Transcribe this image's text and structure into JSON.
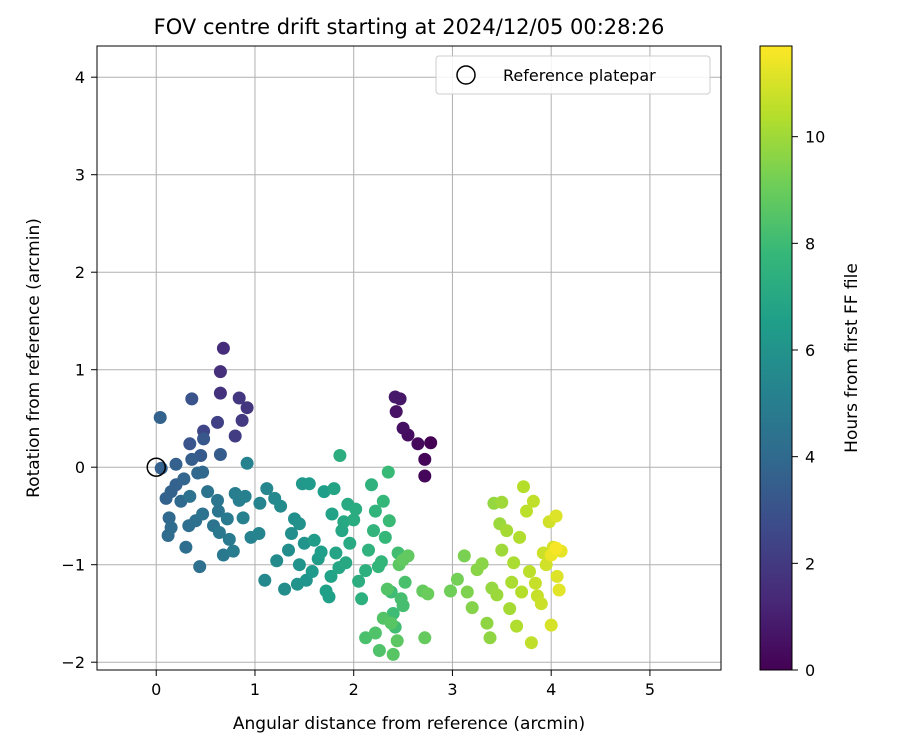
{
  "chart_data": {
    "type": "scatter",
    "title": "FOV centre drift starting at 2024/12/05 00:28:26",
    "xlabel": "Angular distance from reference (arcmin)",
    "ylabel": "Rotation from reference (arcmin)",
    "xlim": [
      -0.6,
      5.72
    ],
    "ylim": [
      -2.08,
      4.32
    ],
    "xticks": [
      "0",
      "1",
      "2",
      "3",
      "4",
      "5"
    ],
    "yticks": [
      "−2",
      "−1",
      "0",
      "1",
      "2",
      "3",
      "4"
    ],
    "grid": true,
    "legend": {
      "position": "top-right",
      "entries": [
        "Reference platepar"
      ]
    },
    "reference_point": {
      "x": 0,
      "y": 0,
      "marker": "open-circle"
    },
    "colorbar": {
      "label": "Hours from first FF file",
      "range": [
        0,
        11.7
      ],
      "ticks": [
        "0",
        "2",
        "4",
        "6",
        "8",
        "10"
      ],
      "colormap": "viridis"
    },
    "colormap_stops": [
      "#440154",
      "#482878",
      "#3e4989",
      "#31688e",
      "#26828e",
      "#1f9e89",
      "#35b779",
      "#6ece58",
      "#b5de2b",
      "#fde725"
    ],
    "point_fields": [
      "x",
      "y",
      "hours"
    ],
    "points": [
      [
        2.78,
        0.25,
        0.0
      ],
      [
        2.72,
        0.08,
        0.1
      ],
      [
        2.72,
        -0.09,
        0.2
      ],
      [
        2.65,
        0.24,
        0.3
      ],
      [
        2.55,
        0.33,
        0.4
      ],
      [
        2.5,
        0.4,
        0.5
      ],
      [
        2.43,
        0.57,
        0.6
      ],
      [
        2.47,
        0.7,
        0.7
      ],
      [
        2.42,
        0.72,
        0.8
      ],
      [
        0.68,
        1.22,
        1.5
      ],
      [
        0.65,
        0.98,
        1.6
      ],
      [
        0.65,
        0.76,
        1.7
      ],
      [
        0.92,
        0.61,
        1.8
      ],
      [
        0.84,
        0.71,
        1.9
      ],
      [
        0.87,
        0.48,
        2.0
      ],
      [
        0.8,
        0.32,
        2.1
      ],
      [
        0.62,
        0.46,
        2.3
      ],
      [
        0.48,
        0.37,
        2.5
      ],
      [
        0.36,
        0.7,
        3.0
      ],
      [
        0.34,
        0.24,
        3.1
      ],
      [
        0.48,
        0.29,
        3.2
      ],
      [
        0.45,
        0.12,
        3.3
      ],
      [
        0.65,
        0.13,
        3.4
      ],
      [
        0.36,
        0.08,
        3.5
      ],
      [
        0.2,
        0.03,
        3.6
      ],
      [
        0.05,
        -0.01,
        3.6
      ],
      [
        0.04,
        0.51,
        3.7
      ],
      [
        0.2,
        -0.18,
        3.6
      ],
      [
        0.15,
        -0.25,
        3.7
      ],
      [
        0.1,
        -0.32,
        3.7
      ],
      [
        0.28,
        -0.12,
        3.8
      ],
      [
        0.42,
        -0.06,
        3.9
      ],
      [
        0.47,
        -0.05,
        3.9
      ],
      [
        0.25,
        -0.35,
        4.0
      ],
      [
        0.13,
        -0.52,
        4.0
      ],
      [
        0.12,
        -0.7,
        4.1
      ],
      [
        0.15,
        -0.62,
        4.1
      ],
      [
        0.3,
        -0.82,
        4.2
      ],
      [
        0.33,
        -0.6,
        4.2
      ],
      [
        0.44,
        -1.02,
        4.3
      ],
      [
        0.4,
        -0.55,
        4.3
      ],
      [
        0.47,
        -0.48,
        4.4
      ],
      [
        0.34,
        -0.3,
        4.4
      ],
      [
        0.52,
        -0.25,
        4.5
      ],
      [
        0.58,
        -0.6,
        4.5
      ],
      [
        0.63,
        -0.45,
        4.6
      ],
      [
        0.62,
        -0.34,
        4.6
      ],
      [
        0.64,
        -0.67,
        4.7
      ],
      [
        0.68,
        -0.9,
        4.7
      ],
      [
        0.72,
        -0.53,
        4.8
      ],
      [
        0.74,
        -0.74,
        4.8
      ],
      [
        0.78,
        -0.86,
        4.9
      ],
      [
        0.8,
        -0.27,
        5.0
      ],
      [
        0.84,
        -0.34,
        5.0
      ],
      [
        0.88,
        -0.52,
        5.1
      ],
      [
        0.9,
        -0.3,
        5.1
      ],
      [
        0.92,
        0.04,
        5.2
      ],
      [
        0.96,
        -0.72,
        5.2
      ],
      [
        1.04,
        -0.68,
        5.3
      ],
      [
        1.05,
        -0.37,
        5.3
      ],
      [
        1.12,
        -0.22,
        5.4
      ],
      [
        1.2,
        -0.32,
        5.5
      ],
      [
        1.1,
        -1.16,
        5.5
      ],
      [
        1.22,
        -0.96,
        5.6
      ],
      [
        1.26,
        -0.4,
        5.6
      ],
      [
        1.3,
        -1.25,
        5.7
      ],
      [
        1.34,
        -0.85,
        5.7
      ],
      [
        1.37,
        -0.68,
        5.8
      ],
      [
        1.4,
        -0.53,
        5.8
      ],
      [
        1.45,
        -0.58,
        5.9
      ],
      [
        1.43,
        -1.2,
        6.0
      ],
      [
        1.45,
        -1.0,
        6.0
      ],
      [
        1.5,
        -0.78,
        6.1
      ],
      [
        1.52,
        -1.16,
        6.1
      ],
      [
        1.48,
        -0.17,
        6.2
      ],
      [
        1.55,
        -0.17,
        6.3
      ],
      [
        1.58,
        -1.07,
        6.3
      ],
      [
        1.6,
        -0.75,
        6.4
      ],
      [
        1.64,
        -0.94,
        6.4
      ],
      [
        1.67,
        -0.87,
        6.5
      ],
      [
        1.7,
        -0.25,
        6.5
      ],
      [
        1.72,
        -1.27,
        6.6
      ],
      [
        1.75,
        -1.33,
        6.6
      ],
      [
        1.77,
        -1.12,
        6.7
      ],
      [
        1.78,
        -0.48,
        6.7
      ],
      [
        1.8,
        -0.22,
        6.8
      ],
      [
        1.82,
        -0.88,
        6.8
      ],
      [
        1.85,
        -1.03,
        6.9
      ],
      [
        1.88,
        -0.65,
        6.9
      ],
      [
        1.9,
        -0.56,
        7.0
      ],
      [
        1.92,
        -0.98,
        7.0
      ],
      [
        1.94,
        -0.38,
        7.1
      ],
      [
        1.96,
        -0.78,
        7.1
      ],
      [
        2.0,
        -0.54,
        7.2
      ],
      [
        2.02,
        -0.43,
        7.2
      ],
      [
        1.86,
        0.12,
        7.3
      ],
      [
        2.05,
        -1.17,
        7.3
      ],
      [
        2.08,
        -1.35,
        7.4
      ],
      [
        2.12,
        -1.06,
        7.4
      ],
      [
        2.15,
        -0.85,
        7.5
      ],
      [
        2.18,
        -0.18,
        7.5
      ],
      [
        2.2,
        -0.65,
        7.6
      ],
      [
        2.22,
        -0.45,
        7.6
      ],
      [
        2.25,
        -1.02,
        7.7
      ],
      [
        2.28,
        -0.97,
        7.7
      ],
      [
        2.3,
        -0.35,
        7.8
      ],
      [
        2.32,
        -0.72,
        7.8
      ],
      [
        2.35,
        -0.05,
        7.9
      ],
      [
        2.36,
        -0.55,
        7.9
      ],
      [
        2.38,
        -1.28,
        8.0
      ],
      [
        2.4,
        -1.5,
        8.0
      ],
      [
        2.42,
        -1.64,
        8.1
      ],
      [
        2.45,
        -0.88,
        8.1
      ],
      [
        2.48,
        -1.35,
        8.2
      ],
      [
        2.5,
        -1.42,
        8.2
      ],
      [
        2.52,
        -1.18,
        8.3
      ],
      [
        2.12,
        -1.75,
        8.3
      ],
      [
        2.22,
        -1.7,
        8.4
      ],
      [
        2.26,
        -1.88,
        8.4
      ],
      [
        2.3,
        -1.55,
        8.5
      ],
      [
        2.34,
        -1.25,
        8.5
      ],
      [
        2.38,
        -1.6,
        8.6
      ],
      [
        2.4,
        -1.92,
        8.6
      ],
      [
        2.44,
        -1.78,
        8.7
      ],
      [
        2.46,
        -1.0,
        8.7
      ],
      [
        2.5,
        -0.95,
        8.8
      ],
      [
        2.55,
        -0.91,
        8.8
      ],
      [
        2.7,
        -1.27,
        8.9
      ],
      [
        2.72,
        -1.75,
        8.9
      ],
      [
        2.75,
        -1.3,
        9.0
      ],
      [
        2.98,
        -1.27,
        9.1
      ],
      [
        3.05,
        -1.15,
        9.2
      ],
      [
        3.12,
        -0.91,
        9.3
      ],
      [
        3.15,
        -1.28,
        9.4
      ],
      [
        3.2,
        -1.44,
        9.5
      ],
      [
        3.25,
        -1.05,
        9.6
      ],
      [
        3.3,
        -0.99,
        9.6
      ],
      [
        3.35,
        -1.6,
        9.7
      ],
      [
        3.38,
        -1.75,
        9.7
      ],
      [
        3.4,
        -1.24,
        9.8
      ],
      [
        3.42,
        -0.37,
        9.8
      ],
      [
        3.45,
        -1.31,
        9.9
      ],
      [
        3.48,
        -0.58,
        9.9
      ],
      [
        3.5,
        -0.85,
        10.0
      ],
      [
        3.5,
        -0.36,
        10.0
      ],
      [
        3.55,
        -0.65,
        10.1
      ],
      [
        3.58,
        -1.45,
        10.1
      ],
      [
        3.6,
        -1.18,
        10.2
      ],
      [
        3.62,
        -0.98,
        10.2
      ],
      [
        3.65,
        -1.63,
        10.3
      ],
      [
        3.68,
        -0.72,
        10.3
      ],
      [
        3.7,
        -1.28,
        10.4
      ],
      [
        3.72,
        -0.2,
        10.4
      ],
      [
        3.75,
        -0.45,
        10.5
      ],
      [
        3.78,
        -1.07,
        10.5
      ],
      [
        3.8,
        -1.8,
        10.6
      ],
      [
        3.82,
        -0.35,
        10.6
      ],
      [
        3.84,
        -1.19,
        10.7
      ],
      [
        3.86,
        -1.32,
        10.7
      ],
      [
        3.9,
        -1.4,
        10.8
      ],
      [
        3.92,
        -0.88,
        10.8
      ],
      [
        3.95,
        -1.0,
        10.9
      ],
      [
        3.98,
        -0.56,
        10.9
      ],
      [
        4.0,
        -1.62,
        11.0
      ],
      [
        4.02,
        -0.82,
        11.0
      ],
      [
        4.05,
        -0.5,
        11.1
      ],
      [
        4.06,
        -1.12,
        11.1
      ],
      [
        4.08,
        -1.26,
        11.2
      ],
      [
        4.1,
        -0.86,
        11.3
      ],
      [
        4.0,
        -0.9,
        11.4
      ],
      [
        4.05,
        -0.83,
        11.6
      ]
    ]
  }
}
